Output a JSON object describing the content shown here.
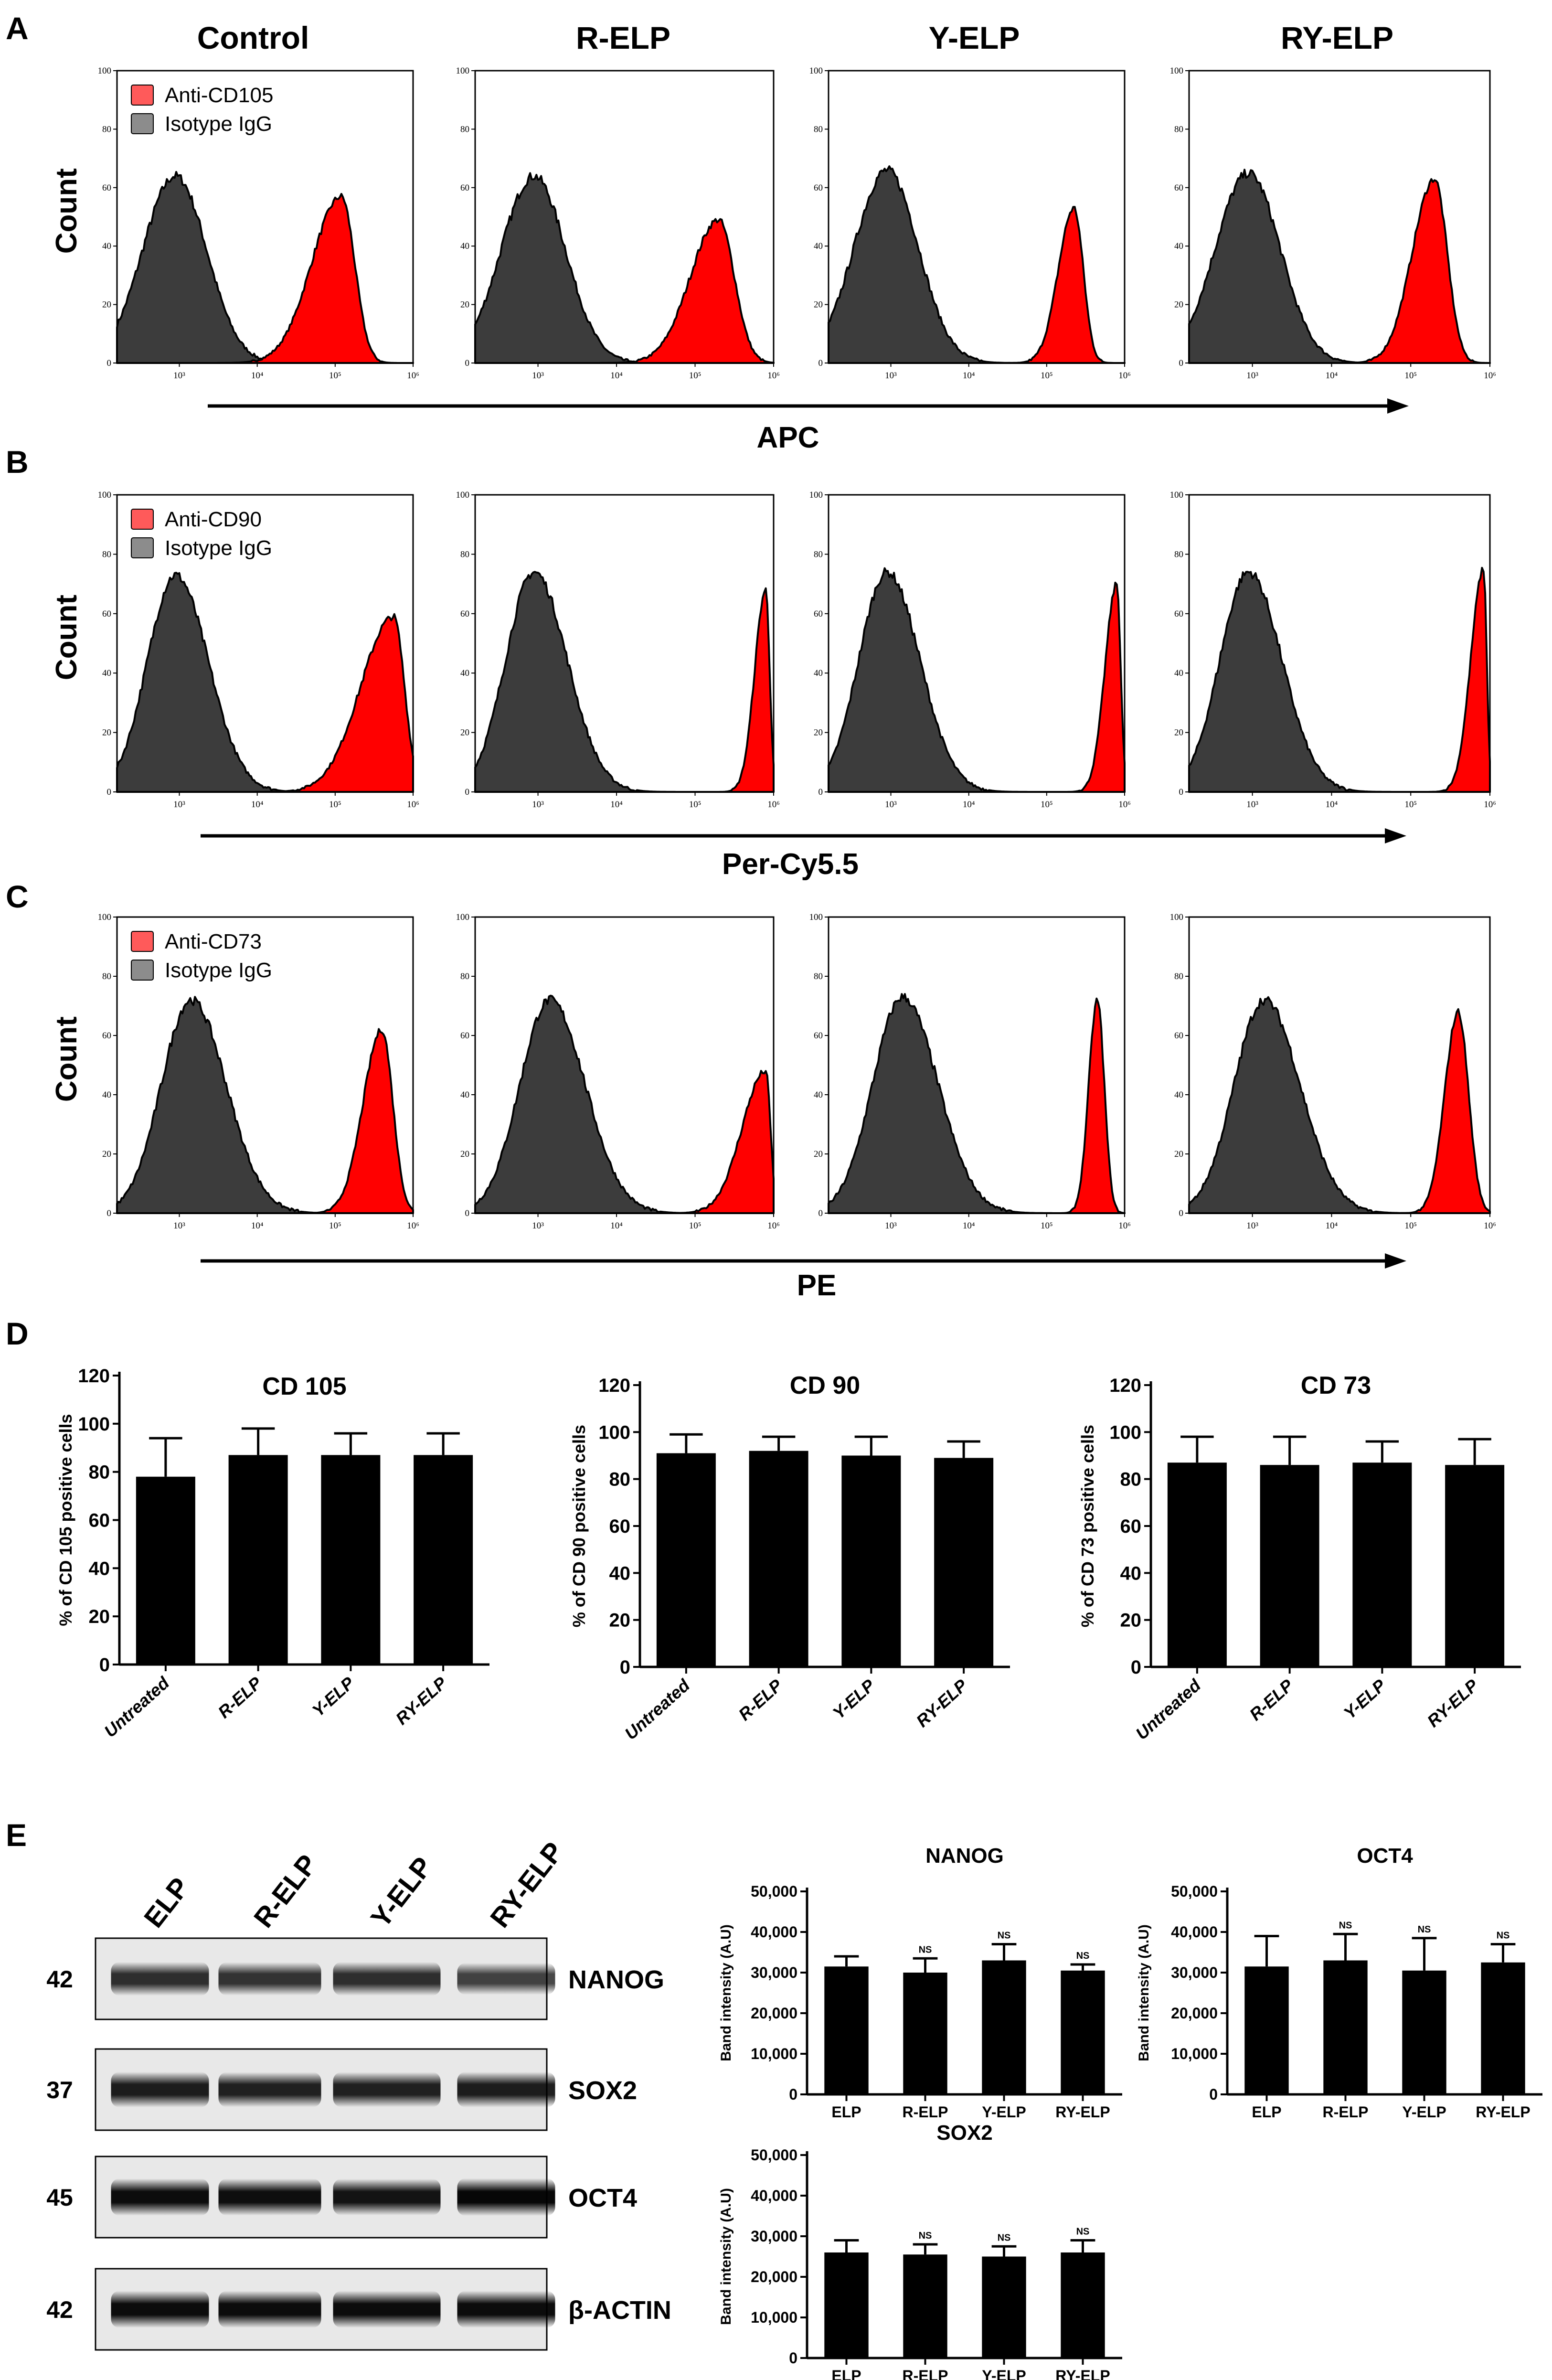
{
  "panel_letters": [
    "A",
    "B",
    "C",
    "D",
    "E"
  ],
  "column_titles": [
    "Control",
    "R-ELP",
    "Y-ELP",
    "RY-ELP"
  ],
  "colors": {
    "isotype": "#3c3c3c",
    "antibody": "#ff0000",
    "bar": "#000000"
  },
  "chart_data": [
    {
      "type": "histogram",
      "panel": "A",
      "ylabel": "Count",
      "xlabel": "APC",
      "x_scale": "log10",
      "xlim_log": [
        2.2,
        6.0
      ],
      "x_ticks": [
        "10³",
        "10⁴",
        "10⁵",
        "10⁶"
      ],
      "y_ticks": [
        "0",
        "20",
        "40",
        "60",
        "80",
        "100"
      ],
      "ylim": [
        0,
        100
      ],
      "legend": [
        "Anti-CD105",
        "Isotype IgG"
      ],
      "series": [
        {
          "name": "Control",
          "isotype": {
            "center": 2.95,
            "height": 64,
            "sl": 0.42,
            "sr": 0.4
          },
          "antibody": {
            "center": 5.08,
            "height": 57,
            "sl": 0.38,
            "sr": 0.17
          }
        },
        {
          "name": "R-ELP",
          "isotype": {
            "center": 2.95,
            "height": 64,
            "sl": 0.42,
            "sr": 0.4
          },
          "antibody": {
            "center": 5.3,
            "height": 49,
            "sl": 0.36,
            "sr": 0.2
          }
        },
        {
          "name": "Y-ELP",
          "isotype": {
            "center": 2.95,
            "height": 66,
            "sl": 0.42,
            "sr": 0.4
          },
          "antibody": {
            "center": 5.35,
            "height": 53,
            "sl": 0.2,
            "sr": 0.12
          }
        },
        {
          "name": "RY-ELP",
          "isotype": {
            "center": 2.95,
            "height": 65,
            "sl": 0.42,
            "sr": 0.4
          },
          "antibody": {
            "center": 5.3,
            "height": 63,
            "sl": 0.28,
            "sr": 0.16
          }
        }
      ]
    },
    {
      "type": "histogram",
      "panel": "B",
      "ylabel": "Count",
      "xlabel": "Per-Cy5.5",
      "x_scale": "log10",
      "xlim_log": [
        2.2,
        6.0
      ],
      "x_ticks": [
        "10³",
        "10⁴",
        "10⁵",
        "10⁶"
      ],
      "y_ticks": [
        "0",
        "20",
        "40",
        "60",
        "80",
        "100"
      ],
      "ylim": [
        0,
        100
      ],
      "legend": [
        "Anti-CD90",
        "Isotype IgG"
      ],
      "series": [
        {
          "name": "Control",
          "isotype": {
            "center": 2.95,
            "height": 73,
            "sl": 0.36,
            "sr": 0.42
          },
          "antibody": {
            "center": 5.75,
            "height": 59,
            "sl": 0.42,
            "sr": 0.14
          }
        },
        {
          "name": "R-ELP",
          "isotype": {
            "center": 2.95,
            "height": 74,
            "sl": 0.36,
            "sr": 0.42
          },
          "antibody": {
            "center": 5.9,
            "height": 68,
            "sl": 0.14,
            "sr": 0.05
          }
        },
        {
          "name": "Y-ELP",
          "isotype": {
            "center": 2.95,
            "height": 74,
            "sl": 0.36,
            "sr": 0.42
          },
          "antibody": {
            "center": 5.9,
            "height": 70,
            "sl": 0.15,
            "sr": 0.05
          }
        },
        {
          "name": "RY-ELP",
          "isotype": {
            "center": 2.95,
            "height": 74,
            "sl": 0.36,
            "sr": 0.42
          },
          "antibody": {
            "center": 5.92,
            "height": 75,
            "sl": 0.16,
            "sr": 0.04
          }
        }
      ]
    },
    {
      "type": "histogram",
      "panel": "C",
      "ylabel": "Count",
      "xlabel": "PE",
      "x_scale": "log10",
      "xlim_log": [
        2.2,
        6.0
      ],
      "x_ticks": [
        "10³",
        "10⁴",
        "10⁵",
        "10⁶"
      ],
      "y_ticks": [
        "0",
        "20",
        "40",
        "60",
        "80",
        "100"
      ],
      "ylim": [
        0,
        100
      ],
      "legend": [
        "Anti-CD73",
        "Isotype IgG"
      ],
      "series": [
        {
          "name": "Control",
          "isotype": {
            "center": 3.15,
            "height": 72,
            "sl": 0.38,
            "sr": 0.45
          },
          "antibody": {
            "center": 5.6,
            "height": 62,
            "sl": 0.24,
            "sr": 0.14
          }
        },
        {
          "name": "R-ELP",
          "isotype": {
            "center": 3.15,
            "height": 72,
            "sl": 0.38,
            "sr": 0.45
          },
          "antibody": {
            "center": 5.9,
            "height": 48,
            "sl": 0.3,
            "sr": 0.06
          }
        },
        {
          "name": "Y-ELP",
          "isotype": {
            "center": 3.15,
            "height": 73,
            "sl": 0.38,
            "sr": 0.45
          },
          "antibody": {
            "center": 5.65,
            "height": 72,
            "sl": 0.11,
            "sr": 0.09
          }
        },
        {
          "name": "RY-ELP",
          "isotype": {
            "center": 3.15,
            "height": 72,
            "sl": 0.38,
            "sr": 0.45
          },
          "antibody": {
            "center": 5.6,
            "height": 68,
            "sl": 0.17,
            "sr": 0.13
          }
        }
      ]
    },
    {
      "type": "bar",
      "panel": "D",
      "title": "CD 105",
      "ylabel": "% of CD 105 positive cells",
      "ylim": [
        0,
        120
      ],
      "y_ticks": [
        "0",
        "20",
        "40",
        "60",
        "80",
        "100",
        "120"
      ],
      "categories": [
        "Untreated",
        "R-ELP",
        "Y-ELP",
        "RY-ELP"
      ],
      "values": [
        78,
        87,
        87,
        87
      ],
      "errors": [
        16,
        11,
        9,
        9
      ]
    },
    {
      "type": "bar",
      "panel": "D",
      "title": "CD 90",
      "ylabel": "% of CD 90 positive cells",
      "ylim": [
        0,
        120
      ],
      "y_ticks": [
        "0",
        "20",
        "40",
        "60",
        "80",
        "100",
        "120"
      ],
      "categories": [
        "Untreated",
        "R-ELP",
        "Y-ELP",
        "RY-ELP"
      ],
      "values": [
        91,
        92,
        90,
        89
      ],
      "errors": [
        8,
        6,
        8,
        7
      ]
    },
    {
      "type": "bar",
      "panel": "D",
      "title": "CD 73",
      "ylabel": "% of CD 73 positive cells",
      "ylim": [
        0,
        120
      ],
      "y_ticks": [
        "0",
        "20",
        "40",
        "60",
        "80",
        "100",
        "120"
      ],
      "categories": [
        "Untreated",
        "R-ELP",
        "Y-ELP",
        "RY-ELP"
      ],
      "values": [
        87,
        86,
        87,
        86
      ],
      "errors": [
        11,
        12,
        9,
        11
      ]
    },
    {
      "type": "bar",
      "panel": "E",
      "title": "NANOG",
      "ylabel": "Band intensity (A.U)",
      "ylim": [
        0,
        50000
      ],
      "y_ticks": [
        "0",
        "10,000",
        "20,000",
        "30,000",
        "40,000",
        "50,000"
      ],
      "categories": [
        "ELP",
        "R-ELP",
        "Y-ELP",
        "RY-ELP"
      ],
      "values": [
        31500,
        30000,
        33000,
        30500
      ],
      "errors": [
        2500,
        3500,
        4000,
        1500
      ],
      "annotations": [
        "",
        "NS",
        "NS",
        "NS"
      ]
    },
    {
      "type": "bar",
      "panel": "E",
      "title": "OCT4",
      "ylabel": "Band intensity (A.U)",
      "ylim": [
        0,
        50000
      ],
      "y_ticks": [
        "0",
        "10,000",
        "20,000",
        "30,000",
        "40,000",
        "50,000"
      ],
      "categories": [
        "ELP",
        "R-ELP",
        "Y-ELP",
        "RY-ELP"
      ],
      "values": [
        31500,
        33000,
        30500,
        32500
      ],
      "errors": [
        7500,
        6500,
        8000,
        4500
      ],
      "annotations": [
        "",
        "NS",
        "NS",
        "NS"
      ]
    },
    {
      "type": "bar",
      "panel": "E",
      "title": "SOX2",
      "ylabel": "Band intensity (A.U)",
      "ylim": [
        0,
        50000
      ],
      "y_ticks": [
        "0",
        "10,000",
        "20,000",
        "30,000",
        "40,000",
        "50,000"
      ],
      "categories": [
        "ELP",
        "R-ELP",
        "Y-ELP",
        "RY-ELP"
      ],
      "values": [
        26000,
        25500,
        25000,
        26000
      ],
      "errors": [
        3000,
        2500,
        2500,
        3000
      ],
      "annotations": [
        "",
        "NS",
        "NS",
        "NS"
      ]
    }
  ],
  "western_blot": {
    "lanes": [
      "ELP",
      "R-ELP",
      "Y-ELP",
      "RY-ELP"
    ],
    "bands": [
      {
        "label": "NANOG",
        "mw": "42",
        "intensity": [
          0.8,
          0.78,
          0.8,
          0.72
        ]
      },
      {
        "label": "SOX2",
        "mw": "37",
        "intensity": [
          0.88,
          0.86,
          0.86,
          0.88
        ]
      },
      {
        "label": "OCT4",
        "mw": "45",
        "intensity": [
          0.95,
          0.94,
          0.92,
          0.97
        ]
      },
      {
        "label": "β-ACTIN",
        "mw": "42",
        "intensity": [
          0.95,
          0.95,
          0.95,
          0.95
        ]
      }
    ]
  }
}
